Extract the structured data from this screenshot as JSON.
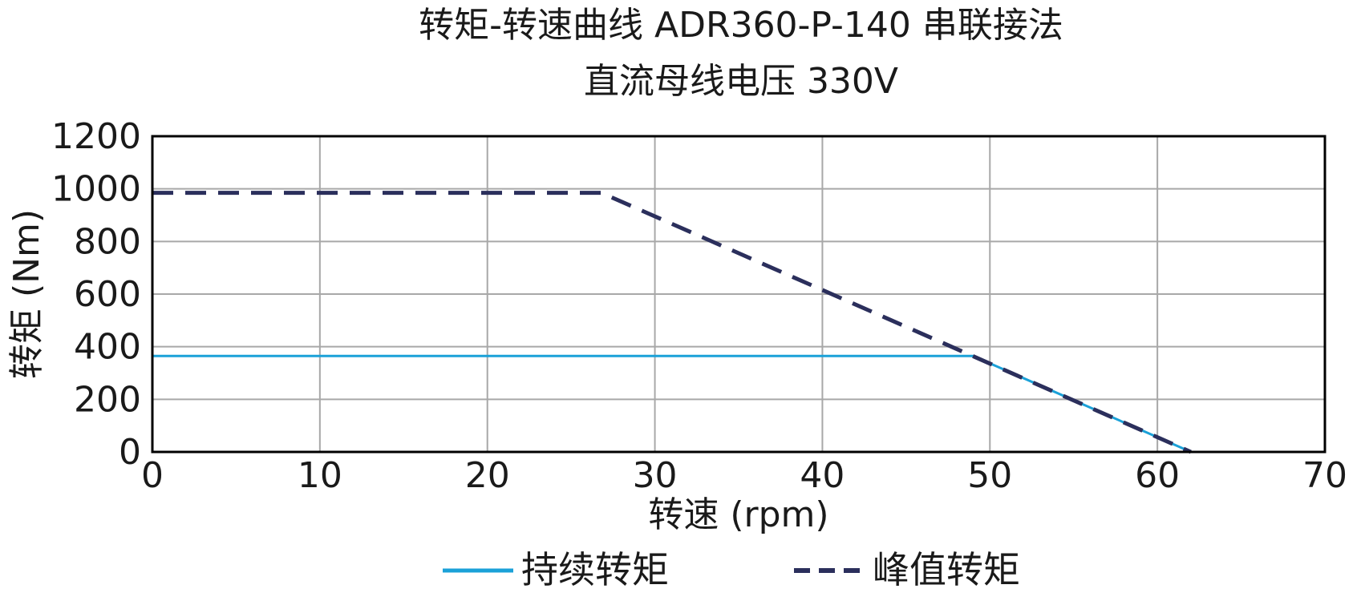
{
  "chart_data": {
    "type": "line",
    "title": "转矩-转速曲线 ADR360-P-140 串联接法",
    "subtitle": "直流母线电压 330V",
    "xlabel": "转速 (rpm)",
    "ylabel": "转矩 (Nm)",
    "xlim": [
      0,
      70
    ],
    "ylim": [
      0,
      1200
    ],
    "xticks": [
      "0",
      "10",
      "20",
      "30",
      "40",
      "50",
      "60",
      "70"
    ],
    "yticks": [
      "0",
      "200",
      "400",
      "600",
      "800",
      "1000",
      "1200"
    ],
    "grid": true,
    "legend_position": "bottom-center",
    "series": [
      {
        "name": "持续转矩",
        "style": "solid",
        "color": "#1ba1d8",
        "x": [
          0,
          49,
          62
        ],
        "y": [
          365,
          365,
          0
        ]
      },
      {
        "name": "峰值转矩",
        "style": "dashed",
        "color": "#2b2f5c",
        "x": [
          0,
          26.8,
          62
        ],
        "y": [
          985,
          985,
          0
        ]
      }
    ]
  }
}
